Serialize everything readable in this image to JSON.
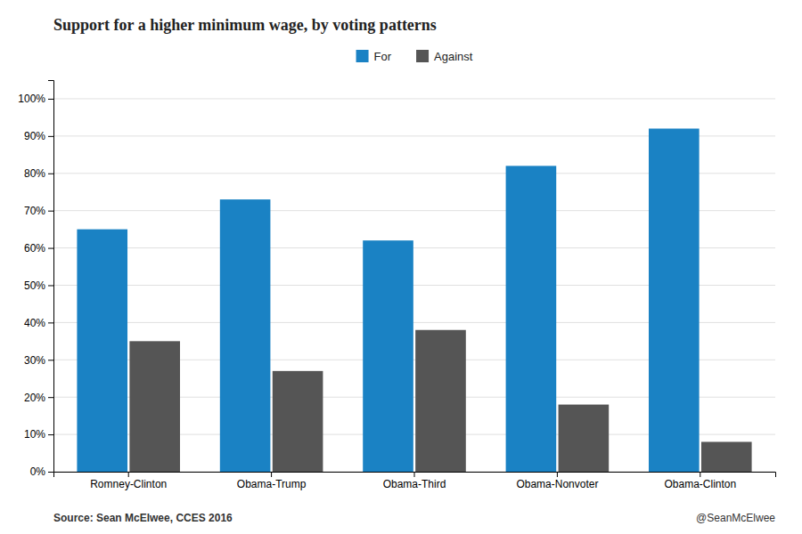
{
  "chart_data": {
    "type": "bar",
    "title": "Support for a higher minimum wage, by voting patterns",
    "categories": [
      "Romney-Clinton",
      "Obama-Trump",
      "Obama-Third",
      "Obama-Nonvoter",
      "Obama-Clinton"
    ],
    "series": [
      {
        "name": "For",
        "color": "#1a82c4",
        "values": [
          0.65,
          0.73,
          0.62,
          0.82,
          0.92
        ]
      },
      {
        "name": "Against",
        "color": "#555555",
        "values": [
          0.35,
          0.27,
          0.38,
          0.18,
          0.08
        ]
      }
    ],
    "ylim": [
      0,
      1.05
    ],
    "yticks": [
      {
        "value": 0.0,
        "label": "0%"
      },
      {
        "value": 0.1,
        "label": "10%"
      },
      {
        "value": 0.2,
        "label": "20%"
      },
      {
        "value": 0.3,
        "label": "30%"
      },
      {
        "value": 0.4,
        "label": "40%"
      },
      {
        "value": 0.5,
        "label": "50%"
      },
      {
        "value": 0.6,
        "label": "60%"
      },
      {
        "value": 0.7,
        "label": "70%"
      },
      {
        "value": 0.8,
        "label": "80%"
      },
      {
        "value": 0.9,
        "label": "90%"
      },
      {
        "value": 1.0,
        "label": "100%"
      }
    ],
    "grid": true,
    "legend": "top",
    "annotations": [
      "Source: Sean McElwee, CCES 2016",
      "@SeanMcElwee"
    ]
  }
}
